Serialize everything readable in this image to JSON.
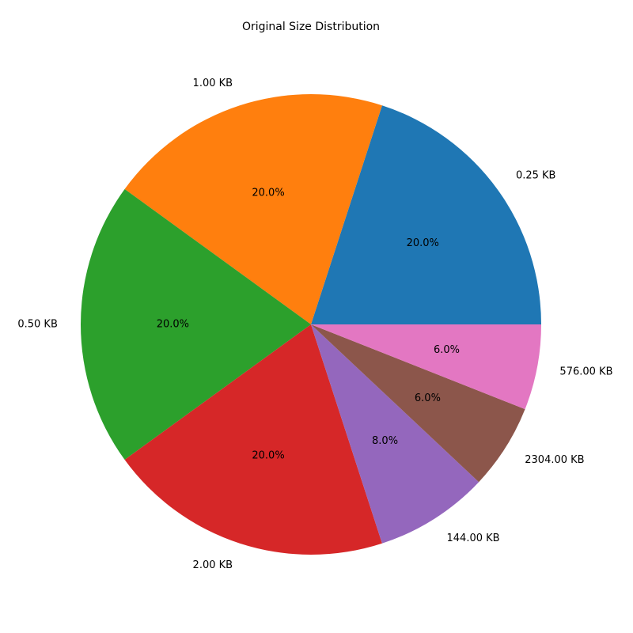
{
  "chart_data": {
    "type": "pie",
    "title": "Original Size Distribution",
    "start_angle_deg": 0,
    "direction": "counterclockwise",
    "slices": [
      {
        "label": "0.25 KB",
        "value": 20.0,
        "pct_text": "20.0%",
        "color": "#1f77b4"
      },
      {
        "label": "1.00 KB",
        "value": 20.0,
        "pct_text": "20.0%",
        "color": "#ff7f0e"
      },
      {
        "label": "0.50 KB",
        "value": 20.0,
        "pct_text": "20.0%",
        "color": "#2ca02c"
      },
      {
        "label": "2.00 KB",
        "value": 20.0,
        "pct_text": "20.0%",
        "color": "#d62728"
      },
      {
        "label": "144.00 KB",
        "value": 8.0,
        "pct_text": "8.0%",
        "color": "#9467bd"
      },
      {
        "label": "2304.00 KB",
        "value": 6.0,
        "pct_text": "6.0%",
        "color": "#8c564b"
      },
      {
        "label": "576.00 KB",
        "value": 6.0,
        "pct_text": "6.0%",
        "color": "#e377c2"
      }
    ]
  }
}
